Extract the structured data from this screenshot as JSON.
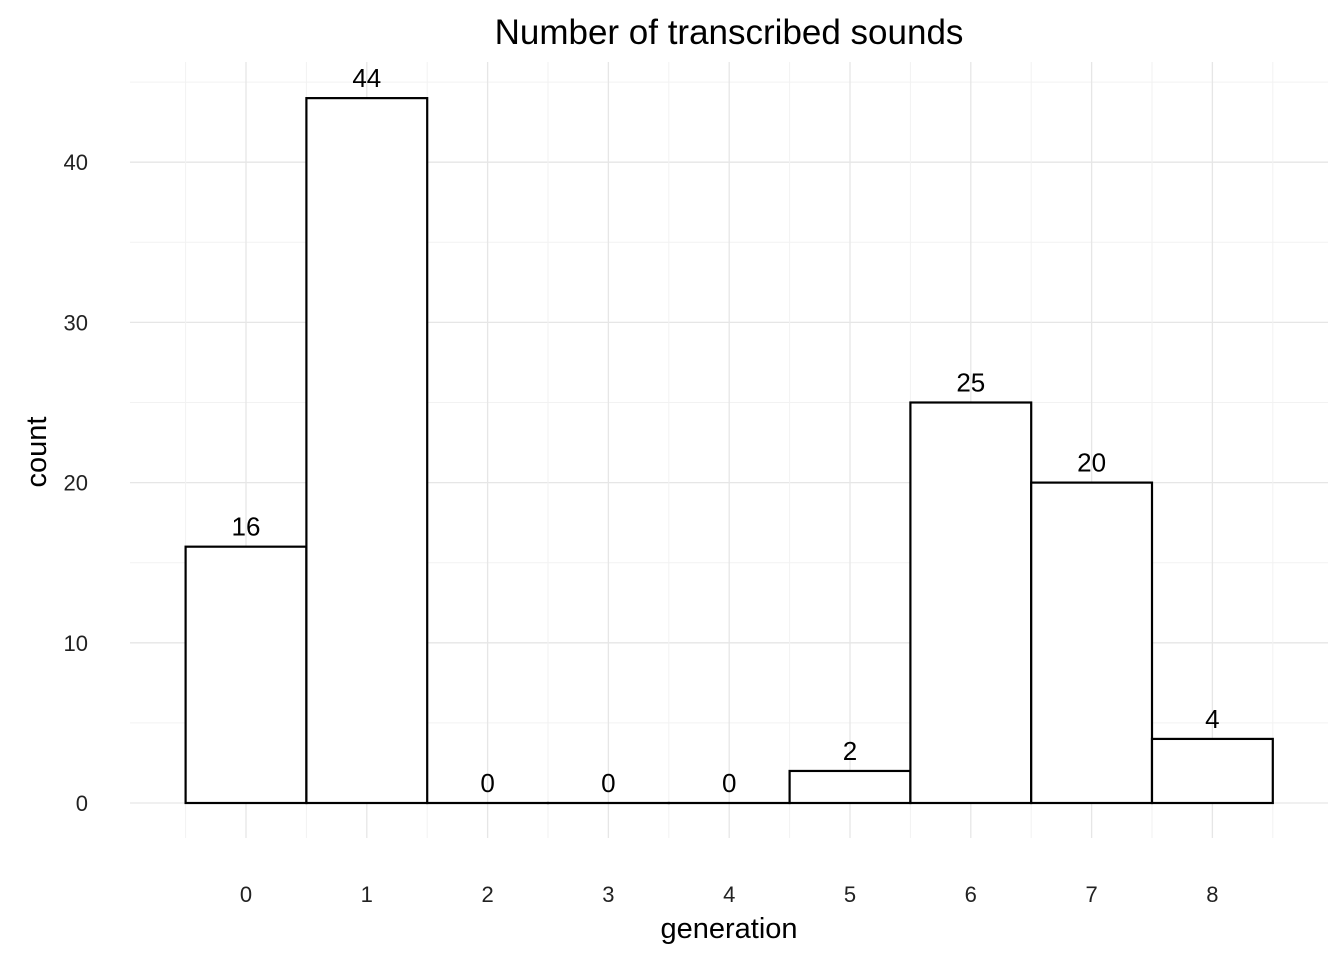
{
  "chart_data": {
    "type": "bar",
    "title": "Number of transcribed sounds",
    "xlabel": "generation",
    "ylabel": "count",
    "categories": [
      "0",
      "1",
      "2",
      "3",
      "4",
      "5",
      "6",
      "7",
      "8"
    ],
    "values": [
      16,
      44,
      0,
      0,
      0,
      2,
      25,
      20,
      4
    ],
    "ylim": [
      0,
      45
    ],
    "yticks": [
      "0",
      "10",
      "20",
      "30",
      "40"
    ],
    "grid": true,
    "legend": "none",
    "bar_fill": "#ffffff",
    "bar_stroke": "#000000"
  }
}
